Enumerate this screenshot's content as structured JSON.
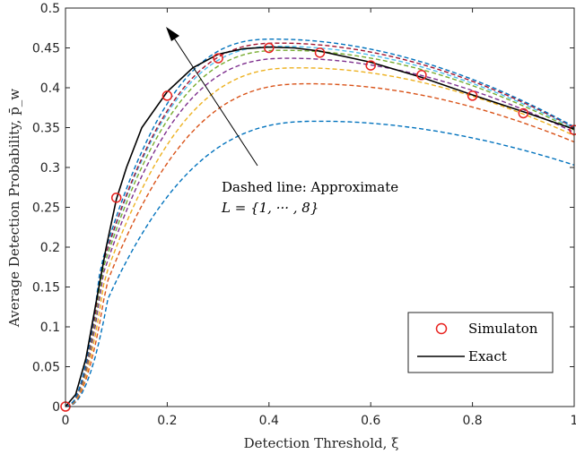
{
  "chart_data": {
    "type": "line",
    "xlabel": "Detection Threshold, ξ",
    "ylabel": "Average Detection Probability, p̄_w",
    "xlim": [
      0,
      1
    ],
    "ylim": [
      0,
      0.5
    ],
    "xticks": [
      "0",
      "0.2",
      "0.4",
      "0.6",
      "0.8",
      "1"
    ],
    "yticks": [
      "0",
      "0.05",
      "0.1",
      "0.15",
      "0.2",
      "0.25",
      "0.3",
      "0.35",
      "0.4",
      "0.45",
      "0.5"
    ],
    "grid": false,
    "legend_position": "bottom-right",
    "annotation": {
      "line1": "Dashed line: Approximate",
      "line2": "L = {1, ··· , 8}"
    },
    "exact": {
      "name": "Exact",
      "color": "#000000",
      "x": [
        0,
        0.02,
        0.04,
        0.06,
        0.08,
        0.1,
        0.12,
        0.15,
        0.2,
        0.25,
        0.3,
        0.35,
        0.4,
        0.45,
        0.5,
        0.6,
        0.7,
        0.8,
        0.9,
        1.0
      ],
      "y": [
        0,
        0.015,
        0.06,
        0.13,
        0.2,
        0.26,
        0.3,
        0.35,
        0.395,
        0.425,
        0.442,
        0.449,
        0.451,
        0.45,
        0.446,
        0.432,
        0.413,
        0.391,
        0.37,
        0.348
      ]
    },
    "simulation": {
      "name": "Simulaton",
      "color": "#e8221f",
      "x": [
        0,
        0.1,
        0.2,
        0.3,
        0.4,
        0.5,
        0.6,
        0.7,
        0.8,
        0.9,
        1.0
      ],
      "y": [
        0,
        0.262,
        0.39,
        0.437,
        0.45,
        0.444,
        0.428,
        0.416,
        0.39,
        0.368,
        0.347
      ]
    },
    "approx_series": [
      {
        "L": 1,
        "color": "#0072bd",
        "peak_x": 0.5,
        "peak_y": 0.358,
        "end_y": 0.303
      },
      {
        "L": 2,
        "color": "#d95319",
        "peak_x": 0.48,
        "peak_y": 0.405,
        "end_y": 0.332
      },
      {
        "L": 3,
        "color": "#edb120",
        "peak_x": 0.46,
        "peak_y": 0.425,
        "end_y": 0.34
      },
      {
        "L": 4,
        "color": "#7e2f8e",
        "peak_x": 0.44,
        "peak_y": 0.437,
        "end_y": 0.344
      },
      {
        "L": 5,
        "color": "#77ac30",
        "peak_x": 0.43,
        "peak_y": 0.447,
        "end_y": 0.347
      },
      {
        "L": 6,
        "color": "#4dbeee",
        "peak_x": 0.42,
        "peak_y": 0.452,
        "end_y": 0.349
      },
      {
        "L": 7,
        "color": "#a2142f",
        "peak_x": 0.42,
        "peak_y": 0.456,
        "end_y": 0.35
      },
      {
        "L": 8,
        "color": "#0072bd",
        "peak_x": 0.41,
        "peak_y": 0.461,
        "end_y": 0.351
      }
    ]
  }
}
